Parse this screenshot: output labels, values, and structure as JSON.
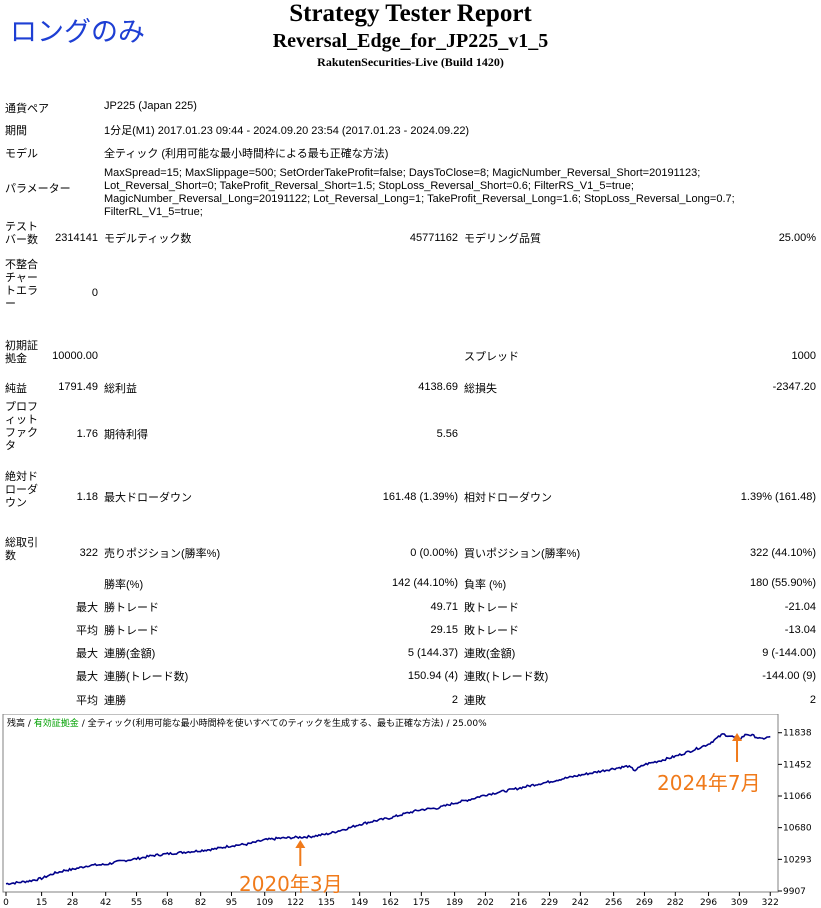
{
  "annotation_top": "ロングのみ",
  "header": {
    "title": "Strategy Tester Report",
    "ea_name": "Reversal_Edge_for_JP225_v1_5",
    "broker": "RakutenSecurities-Live (Build 1420)"
  },
  "info": {
    "symbol_label": "通貨ペア",
    "symbol_value": "JP225 (Japan 225)",
    "period_label": "期間",
    "period_value": "1分足(M1) 2017.01.23 09:44 - 2024.09.20 23:54 (2017.01.23 - 2024.09.22)",
    "model_label": "モデル",
    "model_value": "全ティック (利用可能な最小時間枠による最も正確な方法)",
    "params_label": "パラメーター",
    "params_value": "MaxSpread=15; MaxSlippage=500; SetOrderTakeProfit=false; DaysToClose=8; MagicNumber_Reversal_Short=20191123; Lot_Reversal_Short=0; TakeProfit_Reversal_Short=1.5; StopLoss_Reversal_Short=0.6; FilterRS_V1_5=true; MagicNumber_Reversal_Long=20191122; Lot_Reversal_Long=1; TakeProfit_Reversal_Long=1.6; StopLoss_Reversal_Long=0.7; FilterRL_V1_5=true;"
  },
  "stats": {
    "bars_label": "テストバー数",
    "bars_value": "2314141",
    "ticks_label": "モデルティック数",
    "ticks_value": "45771162",
    "quality_label": "モデリング品質",
    "quality_value": "25.00%",
    "mismatch_label": "不整合チャートエラー",
    "mismatch_value": "0",
    "deposit_label": "初期証拠金",
    "deposit_value": "10000.00",
    "spread_label": "スプレッド",
    "spread_value": "1000",
    "net_label": "純益",
    "net_value": "1791.49",
    "gross_profit_label": "総利益",
    "gross_profit_value": "4138.69",
    "gross_loss_label": "総損失",
    "gross_loss_value": "-2347.20",
    "pf_label": "プロフィットファクタ",
    "pf_value": "1.76",
    "expected_label": "期待利得",
    "expected_value": "5.56",
    "abs_dd_label": "絶対ドローダウン",
    "abs_dd_value": "1.18",
    "max_dd_label": "最大ドローダウン",
    "max_dd_value": "161.48 (1.39%)",
    "rel_dd_label": "相対ドローダウン",
    "rel_dd_value": "1.39% (161.48)",
    "trades_label": "総取引数",
    "trades_value": "322",
    "short_label": "売りポジション(勝率%)",
    "short_value": "0 (0.00%)",
    "long_label": "買いポジション(勝率%)",
    "long_value": "322 (44.10%)",
    "winrate_label": "勝率(%)",
    "winrate_value": "142 (44.10%)",
    "lossrate_label": "負率 (%)",
    "lossrate_value": "180 (55.90%)",
    "max_label": "最大",
    "avg_label": "平均",
    "largest_win_label": "勝トレード",
    "largest_win_value": "49.71",
    "largest_loss_label": "敗トレード",
    "largest_loss_value": "-21.04",
    "avg_win_label": "勝トレード",
    "avg_win_value": "29.15",
    "avg_loss_label": "敗トレード",
    "avg_loss_value": "-13.04",
    "max_consec_win_label": "連勝(金額)",
    "max_consec_win_value": "5 (144.37)",
    "max_consec_loss_label": "連敗(金額)",
    "max_consec_loss_value": "9 (-144.00)",
    "max_consec_profit_label": "連勝(トレード数)",
    "max_consec_profit_value": "150.94 (4)",
    "max_consec_loss2_label": "連敗(トレード数)",
    "max_consec_loss2_value": "-144.00 (9)",
    "avg_consec_win_label": "連勝",
    "avg_consec_win_value": "2",
    "avg_consec_loss_label": "連敗",
    "avg_consec_loss_value": "2"
  },
  "chart_data": {
    "type": "line",
    "legend_parts": [
      "残高",
      "有効証拠金",
      "全ティック(利用可能な最小時間枠を使いすべてのティックを生成する、最も正確な方法)",
      "25.00%"
    ],
    "legend_colors": [
      "#000000",
      "#00a000",
      "#000000",
      "#000000"
    ],
    "line_color": "#00008b",
    "x_ticks": [
      0,
      15,
      28,
      42,
      55,
      68,
      82,
      95,
      109,
      122,
      135,
      149,
      162,
      175,
      189,
      202,
      216,
      229,
      242,
      256,
      269,
      282,
      296,
      309,
      322
    ],
    "y_ticks": [
      9907,
      10293,
      10680,
      11066,
      11452,
      11838
    ],
    "xlim": [
      0,
      324
    ],
    "ylim": [
      9907,
      11920
    ],
    "points": [
      [
        0,
        9995
      ],
      [
        5,
        10010
      ],
      [
        10,
        10030
      ],
      [
        15,
        10060
      ],
      [
        20,
        10120
      ],
      [
        25,
        10160
      ],
      [
        28,
        10170
      ],
      [
        35,
        10220
      ],
      [
        42,
        10230
      ],
      [
        48,
        10270
      ],
      [
        55,
        10300
      ],
      [
        62,
        10340
      ],
      [
        68,
        10360
      ],
      [
        75,
        10380
      ],
      [
        82,
        10400
      ],
      [
        88,
        10420
      ],
      [
        95,
        10460
      ],
      [
        102,
        10480
      ],
      [
        109,
        10530
      ],
      [
        115,
        10550
      ],
      [
        122,
        10560
      ],
      [
        128,
        10570
      ],
      [
        135,
        10600
      ],
      [
        140,
        10640
      ],
      [
        145,
        10680
      ],
      [
        149,
        10720
      ],
      [
        155,
        10760
      ],
      [
        162,
        10800
      ],
      [
        168,
        10850
      ],
      [
        175,
        10900
      ],
      [
        182,
        10920
      ],
      [
        189,
        10980
      ],
      [
        195,
        11020
      ],
      [
        202,
        11080
      ],
      [
        209,
        11120
      ],
      [
        216,
        11160
      ],
      [
        222,
        11200
      ],
      [
        229,
        11240
      ],
      [
        235,
        11280
      ],
      [
        242,
        11320
      ],
      [
        249,
        11360
      ],
      [
        256,
        11400
      ],
      [
        262,
        11430
      ],
      [
        265,
        11380
      ],
      [
        269,
        11450
      ],
      [
        276,
        11500
      ],
      [
        282,
        11550
      ],
      [
        289,
        11620
      ],
      [
        296,
        11700
      ],
      [
        302,
        11820
      ],
      [
        306,
        11790
      ],
      [
        309,
        11760
      ],
      [
        312,
        11820
      ],
      [
        315,
        11800
      ],
      [
        318,
        11760
      ],
      [
        322,
        11790
      ]
    ],
    "annotations": [
      "2024年7月",
      "2020年3月"
    ],
    "annotation_color": "#f07a1a"
  }
}
